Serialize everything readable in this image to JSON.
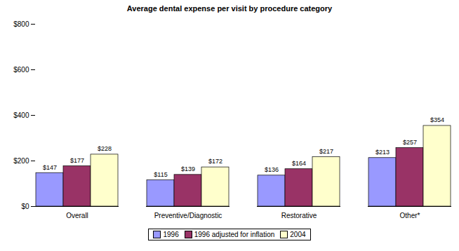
{
  "chart_data": {
    "type": "bar",
    "title": "Average dental expense per visit by procedure category",
    "categories": [
      "Overall",
      "Preventive/Diagnostic",
      "Restorative",
      "Other*"
    ],
    "series": [
      {
        "name": "1996",
        "color": "#9999ff",
        "values": [
          147,
          115,
          136,
          213
        ],
        "value_labels": [
          "$147",
          "$115",
          "$136",
          "$213"
        ]
      },
      {
        "name": "1996 adjusted for inflation",
        "color": "#993366",
        "values": [
          177,
          139,
          164,
          257
        ],
        "value_labels": [
          "$177",
          "$139",
          "$164",
          "$257"
        ]
      },
      {
        "name": "2004",
        "color": "#ffffcc",
        "values": [
          228,
          172,
          217,
          354
        ],
        "value_labels": [
          "$228",
          "$172",
          "$217",
          "$354"
        ]
      }
    ],
    "ylim": [
      0,
      800
    ],
    "yticks": [
      {
        "value": 0,
        "label": "$0"
      },
      {
        "value": 200,
        "label": "$200"
      },
      {
        "value": 400,
        "label": "$400"
      },
      {
        "value": 600,
        "label": "$600"
      },
      {
        "value": 800,
        "label": "$800"
      }
    ],
    "grid": false,
    "data_labels": true,
    "legend": "bottom"
  }
}
